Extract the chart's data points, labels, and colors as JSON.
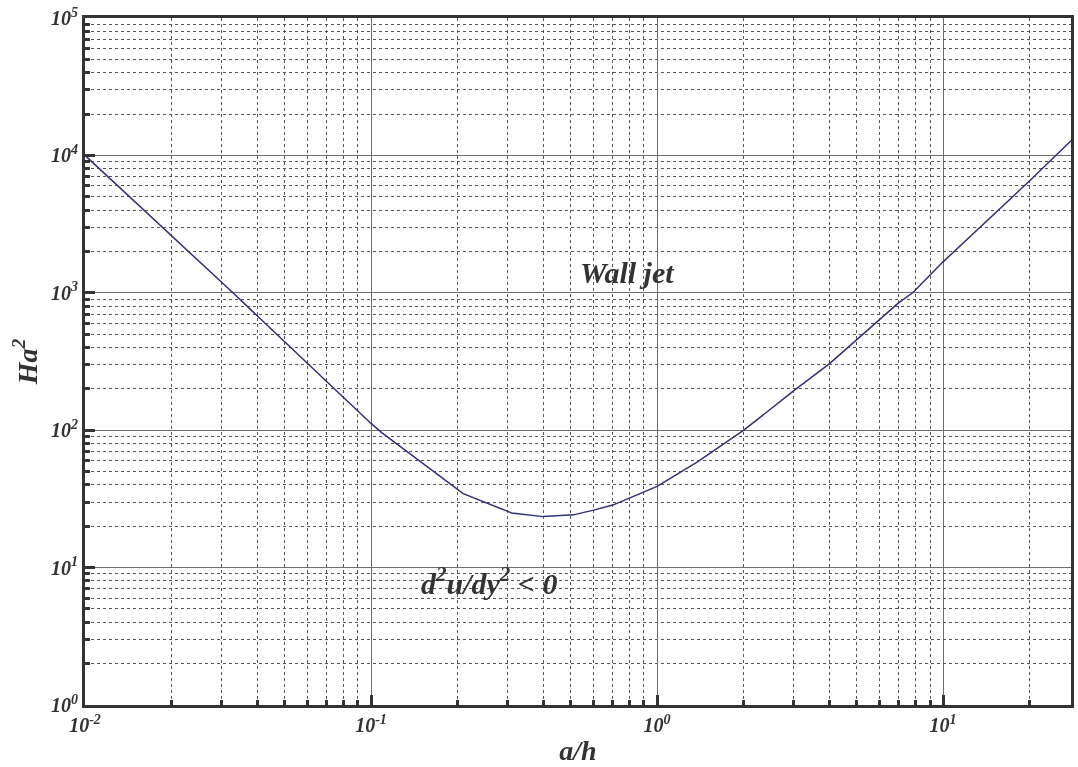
{
  "chart_data": {
    "type": "line",
    "xlabel": "a/h",
    "ylabel": "Ha$^{2}$",
    "log": "xy",
    "grid": true,
    "marker": "none",
    "line_style": "solid",
    "xlim": [
      0.01,
      28
    ],
    "ylim": [
      1,
      100000
    ],
    "xticks": [
      {
        "value": 0.01,
        "label": "10$^{-2}$"
      },
      {
        "value": 0.1,
        "label": "10$^{-1}$"
      },
      {
        "value": 1,
        "label": "10$^{0}$"
      },
      {
        "value": 10,
        "label": "10$^{1}$"
      }
    ],
    "yticks": [
      {
        "value": 1,
        "label": "10$^{0}$"
      },
      {
        "value": 10,
        "label": "10$^{1}$"
      },
      {
        "value": 100,
        "label": "10$^{2}$"
      },
      {
        "value": 1000,
        "label": "10$^{3}$"
      },
      {
        "value": 10000,
        "label": "10$^{4}$"
      },
      {
        "value": 100000,
        "label": "10$^{5}$"
      }
    ],
    "series": [
      {
        "color": "#2e3175",
        "x": [
          0.01,
          0.0329,
          0.1,
          0.109,
          0.21,
          0.31,
          0.4,
          0.51,
          0.6,
          0.7,
          1.0,
          1.38,
          2.01,
          3.0,
          4.0,
          7.0,
          7.83,
          10,
          20.2,
          28
        ],
        "values": [
          10000,
          1000,
          112,
          96,
          34.5,
          25,
          23.5,
          24.2,
          26.2,
          28.5,
          39,
          58.6,
          100,
          193,
          304,
          848,
          1000,
          1680,
          6620,
          12800
        ]
      }
    ],
    "annotations": [
      "Wall jet",
      "d$^{2}$u/dy$^{2}$ < 0"
    ]
  }
}
